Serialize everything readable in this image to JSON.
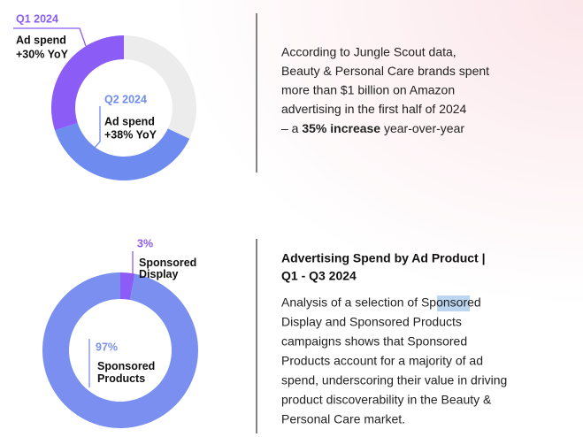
{
  "chart_data": [
    {
      "type": "donut",
      "direction": "counterclockwise",
      "categories": [
        "Q1 2024",
        "Q2 2024"
      ],
      "metric": "Ad spend",
      "values": [
        30,
        38
      ],
      "value_labels": [
        "+30% YoY",
        "+38% YoY"
      ],
      "colors": [
        "#8b5cf6",
        "#6e8bf0"
      ],
      "track_color": "#ececec"
    },
    {
      "type": "donut",
      "direction": "clockwise",
      "categories": [
        "Sponsored Display",
        "Sponsored Products"
      ],
      "values": [
        3,
        97
      ],
      "value_labels": [
        "3%",
        "97%"
      ],
      "colors": [
        "#8b5cf6",
        "#7a8ff0"
      ]
    }
  ],
  "intro": {
    "lines": [
      "According to Jungle Scout data,",
      "Beauty & Personal Care brands spent",
      "more than $1 billion on Amazon",
      "advertising in the first half of 2024"
    ],
    "last_line": [
      "– a ",
      "35% increase",
      " year-over-year"
    ]
  },
  "section": {
    "title_lines": [
      "Advertising Spend by Ad Product |",
      "Q1 - Q3 2024"
    ],
    "lines": [
      "Analysis of a selection of Sponsored",
      "Display and Sponsored Products",
      "campaigns shows that Sponsored",
      "Products account for a majority of ad",
      "spend, underscoring their value in driving",
      "product discoverability in the Beauty &",
      "Personal Care market."
    ]
  }
}
